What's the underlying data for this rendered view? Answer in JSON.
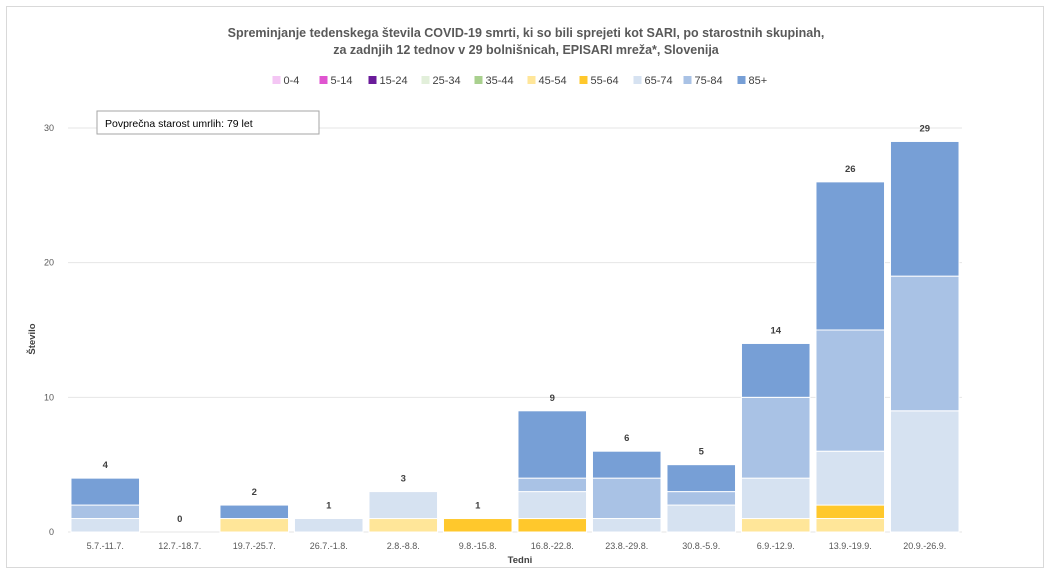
{
  "chart_data": {
    "type": "bar",
    "stacked": true,
    "title_lines": [
      "Spreminjanje tedenskega števila COVID-19 smrti, ki so bili sprejeti kot SARI, po starostnih skupinah,",
      "za zadnjih 12 tednov v 29 bolnišnicah, EPISARI mreža*, Slovenija"
    ],
    "xlabel": "Tedni",
    "ylabel": "Število",
    "ylim": [
      0,
      30
    ],
    "yticks": [
      0,
      10,
      20,
      30
    ],
    "grid": true,
    "legend_position": "top",
    "annotation": "Povprečna starost umrlih: 79 let",
    "categories": [
      "5.7.-11.7.",
      "12.7.-18.7.",
      "19.7.-25.7.",
      "26.7.-1.8.",
      "2.8.-8.8.",
      "9.8.-15.8.",
      "16.8.-22.8.",
      "23.8.-29.8.",
      "30.8.-5.9.",
      "6.9.-12.9.",
      "13.9.-19.9.",
      "20.9.-26.9."
    ],
    "totals": [
      4,
      0,
      2,
      1,
      3,
      1,
      9,
      6,
      5,
      14,
      26,
      29
    ],
    "series": [
      {
        "name": "0-4",
        "color": "#f4c6f4",
        "values": [
          0,
          0,
          0,
          0,
          0,
          0,
          0,
          0,
          0,
          0,
          0,
          0
        ]
      },
      {
        "name": "5-14",
        "color": "#e055d0",
        "values": [
          0,
          0,
          0,
          0,
          0,
          0,
          0,
          0,
          0,
          0,
          0,
          0
        ]
      },
      {
        "name": "15-24",
        "color": "#6a1b9a",
        "values": [
          0,
          0,
          0,
          0,
          0,
          0,
          0,
          0,
          0,
          0,
          0,
          0
        ]
      },
      {
        "name": "25-34",
        "color": "#e2efda",
        "values": [
          0,
          0,
          0,
          0,
          0,
          0,
          0,
          0,
          0,
          0,
          0,
          0
        ]
      },
      {
        "name": "35-44",
        "color": "#a9d08e",
        "values": [
          0,
          0,
          0,
          0,
          0,
          0,
          0,
          0,
          0,
          0,
          0,
          0
        ]
      },
      {
        "name": "45-54",
        "color": "#ffe699",
        "values": [
          0,
          0,
          1,
          0,
          1,
          0,
          0,
          0,
          0,
          1,
          1,
          0
        ]
      },
      {
        "name": "55-64",
        "color": "#ffc82c",
        "values": [
          0,
          0,
          0,
          0,
          0,
          1,
          1,
          0,
          0,
          0,
          1,
          0
        ]
      },
      {
        "name": "65-74",
        "color": "#d6e2f1",
        "values": [
          1,
          0,
          0,
          1,
          2,
          0,
          2,
          1,
          2,
          3,
          4,
          9
        ]
      },
      {
        "name": "75-84",
        "color": "#a9c2e5",
        "values": [
          1,
          0,
          0,
          0,
          0,
          0,
          1,
          3,
          1,
          6,
          9,
          10
        ]
      },
      {
        "name": "85+",
        "color": "#779fd6",
        "values": [
          2,
          0,
          1,
          0,
          0,
          0,
          5,
          2,
          2,
          4,
          11,
          10
        ]
      }
    ]
  }
}
